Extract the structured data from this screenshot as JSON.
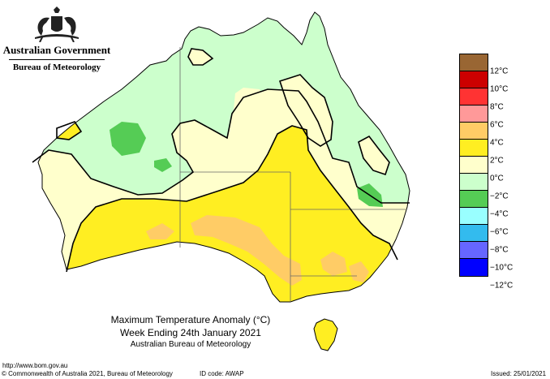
{
  "header": {
    "government": "Australian Government",
    "bureau": "Bureau of Meteorology"
  },
  "map": {
    "title_line1": "Maximum Temperature Anomaly (°C)",
    "title_line2": "Week Ending 24th January 2021",
    "title_line3": "Australian Bureau of Meteorology"
  },
  "legend": {
    "colors": [
      "#996633",
      "#cc0000",
      "#ff3333",
      "#ff9999",
      "#ffcc66",
      "#ffee22",
      "#ffffcc",
      "#ccffcc",
      "#55cc55",
      "#99ffff",
      "#33bbee",
      "#6666ff",
      "#0000ff"
    ],
    "labels": [
      "12°C",
      "10°C",
      "8°C",
      "6°C",
      "4°C",
      "2°C",
      "0°C",
      "−2°C",
      "−4°C",
      "−6°C",
      "−8°C",
      "−10°C",
      "−12°C"
    ]
  },
  "footer": {
    "url": "http://www.bom.gov.au",
    "copyright": "© Commonwealth of Australia 2021, Bureau of Meteorology",
    "id_code": "ID code: AWAP",
    "issued": "Issued: 25/01/2021"
  }
}
